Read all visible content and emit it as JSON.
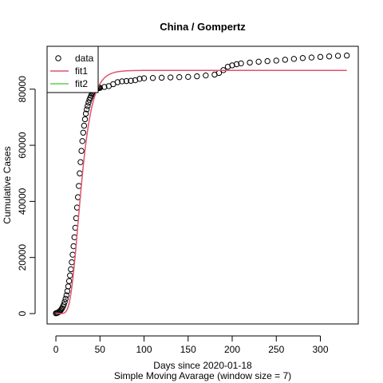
{
  "chart_data": {
    "type": "line",
    "title": "China / Gompertz",
    "xlabel": "Days since 2020-01-18",
    "xlabel2": "Simple Moving Avarage (window size = 7)",
    "ylabel": "Cumulative Cases",
    "xlim": [
      -10,
      343
    ],
    "ylim": [
      -3700,
      95300
    ],
    "xticks": [
      0,
      50,
      100,
      150,
      200,
      250,
      300
    ],
    "yticks": [
      0,
      20000,
      40000,
      60000,
      80000
    ],
    "legend": {
      "position": "top-left",
      "entries": [
        {
          "label": "data",
          "style": "circle",
          "color": "#000000"
        },
        {
          "label": "fit1",
          "style": "line",
          "color": "#DF536B"
        },
        {
          "label": "fit2",
          "style": "line",
          "color": "#61D04F"
        }
      ]
    },
    "series": [
      {
        "name": "data",
        "style": "points",
        "color": "#000000",
        "x": [
          0,
          1,
          2,
          3,
          4,
          5,
          6,
          7,
          8,
          9,
          10,
          11,
          12,
          13,
          14,
          15,
          16,
          17,
          18,
          19,
          20,
          21,
          22,
          23,
          24,
          25,
          26,
          27,
          28,
          29,
          30,
          31,
          32,
          33,
          34,
          35,
          36,
          37,
          38,
          39,
          40,
          41,
          42,
          43,
          44,
          45,
          46,
          47,
          48,
          49,
          50,
          55,
          60,
          65,
          70,
          75,
          80,
          85,
          90,
          95,
          100,
          110,
          120,
          130,
          140,
          150,
          160,
          170,
          180,
          185,
          190,
          195,
          200,
          205,
          210,
          220,
          230,
          240,
          250,
          260,
          270,
          280,
          290,
          300,
          310,
          320,
          330
        ],
        "y": [
          100,
          200,
          300,
          500,
          700,
          1000,
          1400,
          1900,
          2500,
          3200,
          4200,
          5300,
          6500,
          8000,
          9700,
          11600,
          13600,
          15800,
          18300,
          21000,
          24000,
          27200,
          30600,
          34000,
          37800,
          41500,
          45500,
          50000,
          54000,
          58000,
          61500,
          64500,
          67000,
          69300,
          71300,
          72800,
          74000,
          75200,
          76200,
          77000,
          77700,
          78300,
          78800,
          79200,
          79600,
          79900,
          80100,
          80250,
          80350,
          80450,
          80500,
          80800,
          81100,
          81800,
          82500,
          82800,
          82900,
          83000,
          83200,
          83700,
          83900,
          84000,
          84100,
          84200,
          84300,
          84400,
          84600,
          84900,
          85200,
          85800,
          86800,
          88000,
          88500,
          88900,
          89200,
          89500,
          89800,
          90000,
          90200,
          90500,
          90800,
          91100,
          91300,
          91500,
          91700,
          91900,
          92000
        ]
      },
      {
        "name": "fit1",
        "style": "line",
        "color": "#DF536B",
        "asymptote": 86700,
        "growth_rate": 0.115,
        "inflection_day": 25,
        "x_range": [
          0,
          330
        ]
      }
    ]
  }
}
